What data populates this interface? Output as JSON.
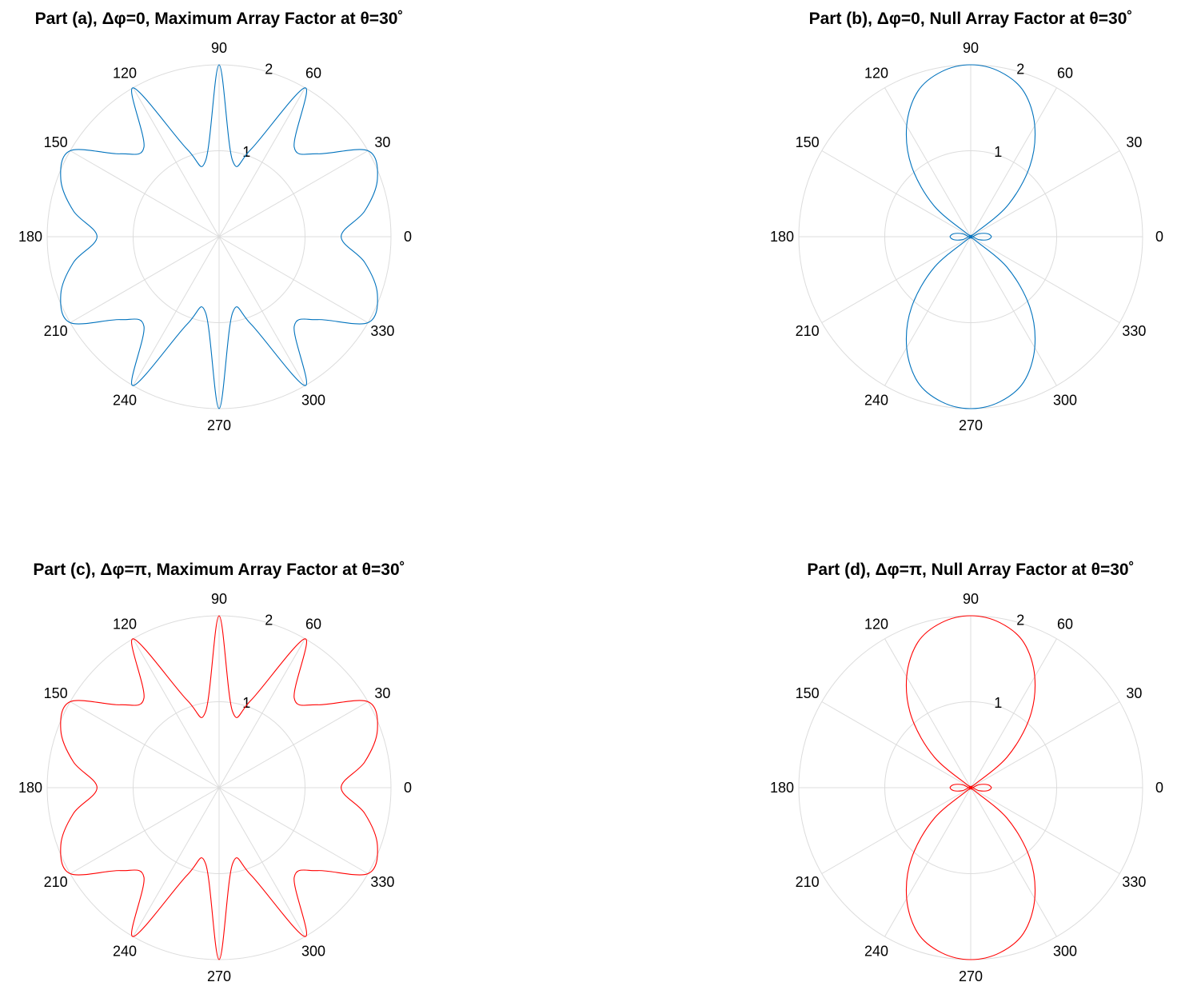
{
  "chart_data": [
    {
      "type": "polar-line",
      "title": "Part (a), Δφ=0, Maximum Array Factor at θ=30˚",
      "r_max": 2,
      "r_ticks": [
        {
          "value": 1,
          "label": "1"
        },
        {
          "value": 2,
          "label": "2"
        }
      ],
      "angle_ticks": [
        "0",
        "30",
        "60",
        "90",
        "120",
        "150",
        "180",
        "210",
        "240",
        "270",
        "300",
        "330"
      ],
      "grid": true,
      "line_color": "#0072bd",
      "series": [
        {
          "angle_deg": [
            0,
            10,
            20,
            30,
            40,
            50,
            60,
            70,
            80,
            90
          ],
          "r": [
            1.42,
            1.72,
            1.96,
            2.0,
            1.5,
            1.36,
            2.0,
            1.08,
            0.9,
            2.0
          ]
        }
      ]
    },
    {
      "type": "polar-line",
      "title": "Part (b), Δφ=0, Null Array Factor at θ=30˚",
      "r_max": 2,
      "r_ticks": [
        {
          "value": 1,
          "label": "1"
        },
        {
          "value": 2,
          "label": "2"
        }
      ],
      "angle_ticks": [
        "0",
        "30",
        "60",
        "90",
        "120",
        "150",
        "180",
        "210",
        "240",
        "270",
        "300",
        "330"
      ],
      "grid": true,
      "line_color": "#0072bd",
      "series": [
        {
          "angle_deg": [
            0,
            10,
            20,
            30,
            40,
            50,
            60,
            70,
            80,
            90
          ],
          "r": [
            0.24,
            0.2,
            0.1,
            0.0,
            0.55,
            1.07,
            1.49,
            1.8,
            1.95,
            2.0
          ]
        }
      ]
    },
    {
      "type": "polar-line",
      "title": "Part (c), Δφ=π, Maximum Array Factor at θ=30˚",
      "r_max": 2,
      "r_ticks": [
        {
          "value": 1,
          "label": "1"
        },
        {
          "value": 2,
          "label": "2"
        }
      ],
      "angle_ticks": [
        "0",
        "30",
        "60",
        "90",
        "120",
        "150",
        "180",
        "210",
        "240",
        "270",
        "300",
        "330"
      ],
      "grid": true,
      "line_color": "#ff0000",
      "series": [
        {
          "angle_deg": [
            0,
            10,
            20,
            30,
            40,
            50,
            60,
            70,
            80,
            90
          ],
          "r": [
            1.42,
            1.72,
            1.96,
            2.0,
            1.5,
            1.36,
            2.0,
            1.08,
            0.9,
            2.0
          ]
        }
      ]
    },
    {
      "type": "polar-line",
      "title": "Part (d), Δφ=π, Null Array Factor at θ=30˚",
      "r_max": 2,
      "r_ticks": [
        {
          "value": 1,
          "label": "1"
        },
        {
          "value": 2,
          "label": "2"
        }
      ],
      "angle_ticks": [
        "0",
        "30",
        "60",
        "90",
        "120",
        "150",
        "180",
        "210",
        "240",
        "270",
        "300",
        "330"
      ],
      "grid": true,
      "line_color": "#ff0000",
      "series": [
        {
          "angle_deg": [
            0,
            10,
            20,
            30,
            40,
            50,
            60,
            70,
            80,
            90
          ],
          "r": [
            0.24,
            0.2,
            0.1,
            0.0,
            0.55,
            1.07,
            1.49,
            1.8,
            1.95,
            2.0
          ]
        }
      ]
    }
  ]
}
